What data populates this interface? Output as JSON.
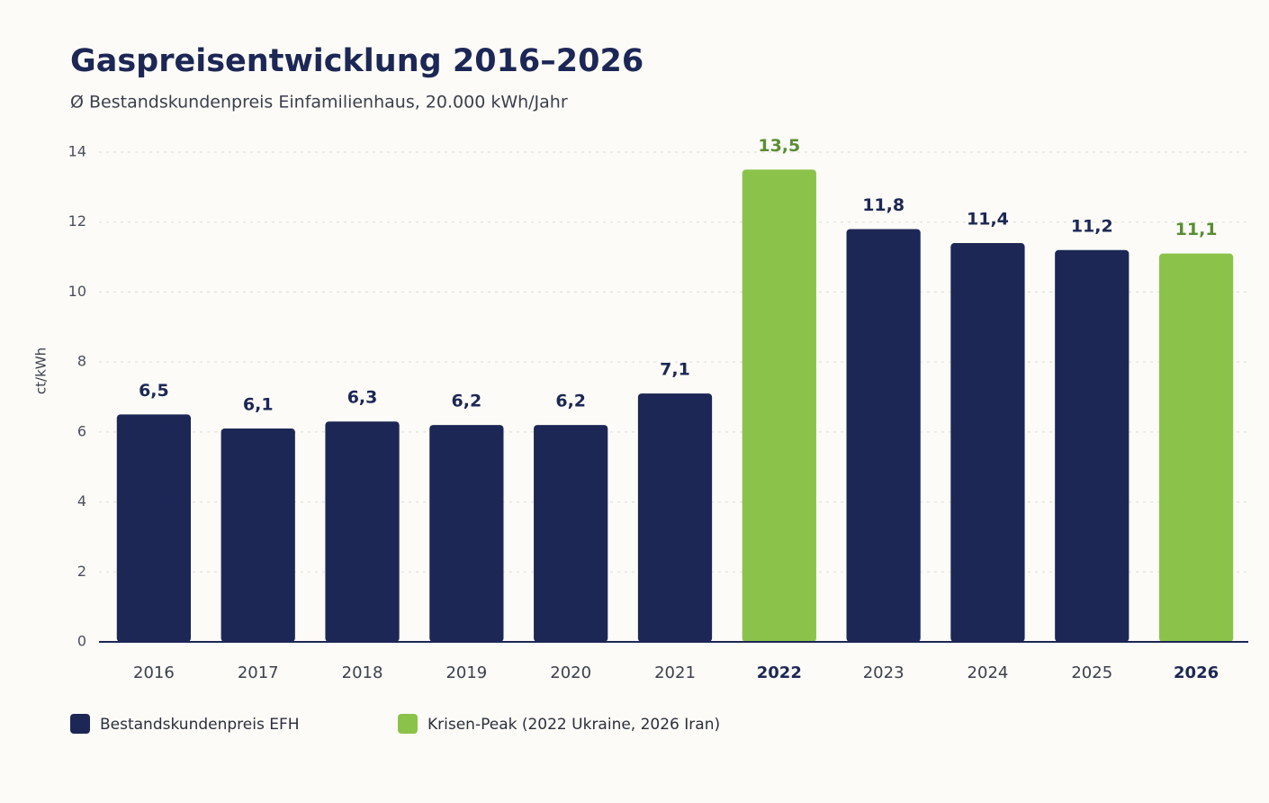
{
  "chart_data": {
    "type": "bar",
    "title": "Gaspreisentwicklung 2016–2026",
    "subtitle": "Ø Bestandskundenpreis Einfamilienhaus, 20.000 kWh/Jahr",
    "y_label": "ct/kWh",
    "categories": [
      "2016",
      "2017",
      "2018",
      "2019",
      "2020",
      "2021",
      "2022",
      "2023",
      "2024",
      "2025",
      "2026"
    ],
    "series": [
      {
        "name": "Bestandskundenpreis EFH",
        "color": "#1c2755",
        "values": [
          6.5,
          6.1,
          6.3,
          6.2,
          6.2,
          7.1,
          null,
          11.8,
          11.4,
          11.2,
          null
        ],
        "value_labels": [
          "6,5",
          "6,1",
          "6,3",
          "6,2",
          "6,2",
          "7,1",
          null,
          "11,8",
          "11,4",
          "11,2",
          null
        ]
      },
      {
        "name": "Krisen-Peak (2022 Ukraine, 2026 Iran)",
        "color": "#8bc34a",
        "values": [
          null,
          null,
          null,
          null,
          null,
          null,
          13.5,
          null,
          null,
          null,
          11.1
        ],
        "value_labels": [
          null,
          null,
          null,
          null,
          null,
          null,
          "13,5",
          null,
          null,
          null,
          "11,1"
        ]
      }
    ],
    "ylim": [
      0,
      14
    ],
    "yticks": [
      0,
      2,
      4,
      6,
      8,
      10,
      12,
      14
    ],
    "grid": true
  }
}
